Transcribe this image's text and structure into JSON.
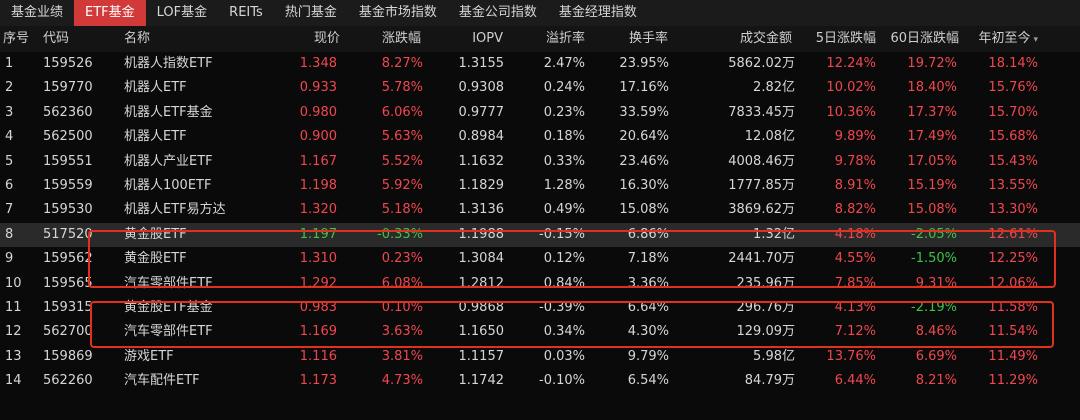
{
  "tabs": [
    "基金业绩",
    "ETF基金",
    "LOF基金",
    "REITs",
    "热门基金",
    "基金市场指数",
    "基金公司指数",
    "基金经理指数"
  ],
  "active_tab": 1,
  "columns": [
    "序号",
    "代码",
    "名称",
    "现价",
    "涨跌幅",
    "IOPV",
    "溢折率",
    "换手率",
    "成交金额",
    "5日涨跌幅",
    "60日涨跌幅",
    "年初至今"
  ],
  "sort_icon": "▾",
  "colors": {
    "up": "#f0474f",
    "down": "#3fc24a",
    "active_tab": "#d23a3a",
    "annotation_box": "#e0311f"
  },
  "rows": [
    {
      "no": "1",
      "code": "159526",
      "name": "机器人指数ETF",
      "price": "1.348",
      "chg": "8.27%",
      "iopv": "1.3155",
      "premium": "2.47%",
      "turnover": "23.95%",
      "amount": "5862.02万",
      "d5": "12.24%",
      "d60": "19.72%",
      "ytd": "18.14%"
    },
    {
      "no": "2",
      "code": "159770",
      "name": "机器人ETF",
      "price": "0.933",
      "chg": "5.78%",
      "iopv": "0.9308",
      "premium": "0.24%",
      "turnover": "17.16%",
      "amount": "2.82亿",
      "d5": "10.02%",
      "d60": "18.40%",
      "ytd": "15.76%"
    },
    {
      "no": "3",
      "code": "562360",
      "name": "机器人ETF基金",
      "price": "0.980",
      "chg": "6.06%",
      "iopv": "0.9777",
      "premium": "0.23%",
      "turnover": "33.59%",
      "amount": "7833.45万",
      "d5": "10.36%",
      "d60": "17.37%",
      "ytd": "15.70%"
    },
    {
      "no": "4",
      "code": "562500",
      "name": "机器人ETF",
      "price": "0.900",
      "chg": "5.63%",
      "iopv": "0.8984",
      "premium": "0.18%",
      "turnover": "20.64%",
      "amount": "12.08亿",
      "d5": "9.89%",
      "d60": "17.49%",
      "ytd": "15.68%"
    },
    {
      "no": "5",
      "code": "159551",
      "name": "机器人产业ETF",
      "price": "1.167",
      "chg": "5.52%",
      "iopv": "1.1632",
      "premium": "0.33%",
      "turnover": "23.46%",
      "amount": "4008.46万",
      "d5": "9.78%",
      "d60": "17.05%",
      "ytd": "15.43%"
    },
    {
      "no": "6",
      "code": "159559",
      "name": "机器人100ETF",
      "price": "1.198",
      "chg": "5.92%",
      "iopv": "1.1829",
      "premium": "1.28%",
      "turnover": "16.30%",
      "amount": "1777.85万",
      "d5": "8.91%",
      "d60": "15.19%",
      "ytd": "13.55%"
    },
    {
      "no": "7",
      "code": "159530",
      "name": "机器人ETF易方达",
      "price": "1.320",
      "chg": "5.18%",
      "iopv": "1.3136",
      "premium": "0.49%",
      "turnover": "15.08%",
      "amount": "3869.62万",
      "d5": "8.82%",
      "d60": "15.08%",
      "ytd": "13.30%"
    },
    {
      "no": "8",
      "code": "517520",
      "name": "黄金股ETF",
      "price": "1.197",
      "chg": "-0.33%",
      "iopv": "1.1988",
      "premium": "-0.15%",
      "turnover": "6.86%",
      "amount": "1.32亿",
      "d5": "4.18%",
      "d60": "-2.05%",
      "ytd": "12.61%"
    },
    {
      "no": "9",
      "code": "159562",
      "name": "黄金股ETF",
      "price": "1.310",
      "chg": "0.23%",
      "iopv": "1.3084",
      "premium": "0.12%",
      "turnover": "7.18%",
      "amount": "2441.70万",
      "d5": "4.55%",
      "d60": "-1.50%",
      "ytd": "12.25%"
    },
    {
      "no": "10",
      "code": "159565",
      "name": "汽车零部件ETF",
      "price": "1.292",
      "chg": "6.08%",
      "iopv": "1.2812",
      "premium": "0.84%",
      "turnover": "3.36%",
      "amount": "235.96万",
      "d5": "7.85%",
      "d60": "9.31%",
      "ytd": "12.06%"
    },
    {
      "no": "11",
      "code": "159315",
      "name": "黄金股ETF基金",
      "price": "0.983",
      "chg": "0.10%",
      "iopv": "0.9868",
      "premium": "-0.39%",
      "turnover": "6.64%",
      "amount": "296.76万",
      "d5": "4.13%",
      "d60": "-2.19%",
      "ytd": "11.58%"
    },
    {
      "no": "12",
      "code": "562700",
      "name": "汽车零部件ETF",
      "price": "1.169",
      "chg": "3.63%",
      "iopv": "1.1650",
      "premium": "0.34%",
      "turnover": "4.30%",
      "amount": "129.09万",
      "d5": "7.12%",
      "d60": "8.46%",
      "ytd": "11.54%"
    },
    {
      "no": "13",
      "code": "159869",
      "name": "游戏ETF",
      "price": "1.116",
      "chg": "3.81%",
      "iopv": "1.1157",
      "premium": "0.03%",
      "turnover": "9.79%",
      "amount": "5.98亿",
      "d5": "13.76%",
      "d60": "6.69%",
      "ytd": "11.49%"
    },
    {
      "no": "14",
      "code": "562260",
      "name": "汽车配件ETF",
      "price": "1.173",
      "chg": "4.73%",
      "iopv": "1.1742",
      "premium": "-0.10%",
      "turnover": "6.54%",
      "amount": "84.79万",
      "d5": "6.44%",
      "d60": "8.21%",
      "ytd": "11.29%"
    }
  ]
}
